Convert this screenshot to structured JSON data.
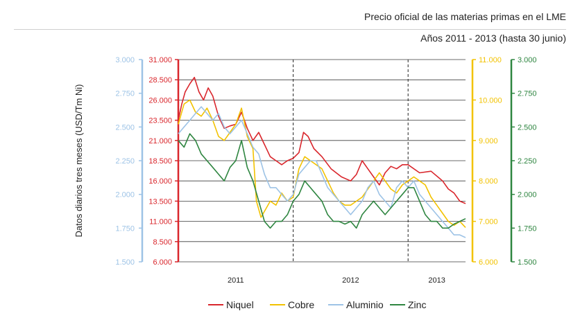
{
  "chart_data": {
    "type": "line",
    "title": "Precio oficial de las materias primas en el LME",
    "subtitle": "Años 2011 - 2013 (hasta 30 junio)",
    "ylabel": "Datos diarios tres meses (USD/Tm Ni)",
    "categories": [
      "2011",
      "2012",
      "2013"
    ],
    "x_range": [
      2011.0,
      2013.5
    ],
    "vertical_separators": [
      2012.0,
      2013.0
    ],
    "grid": true,
    "legend_position": "bottom",
    "axes": {
      "aluminio": {
        "range": [
          1500,
          3000
        ],
        "ticks": [
          "1.500",
          "1.750",
          "2.000",
          "2.250",
          "2.500",
          "2.750",
          "3.000"
        ],
        "color": "#9dc3e6"
      },
      "niquel": {
        "range": [
          6000,
          31000
        ],
        "ticks": [
          "6.000",
          "8.500",
          "11.000",
          "13.500",
          "16.000",
          "18.500",
          "21.000",
          "23.500",
          "26.000",
          "28.500",
          "31.000"
        ],
        "color": "#d9262c"
      },
      "cobre": {
        "range": [
          6000,
          11000
        ],
        "ticks": [
          "6.000",
          "7.000",
          "8.000",
          "9.000",
          "10.000",
          "11.000"
        ],
        "color": "#f2c200"
      },
      "zinc": {
        "range": [
          1500,
          3000
        ],
        "ticks": [
          "1.500",
          "1.750",
          "2.000",
          "2.250",
          "2.500",
          "2.750",
          "3.000"
        ],
        "color": "#2e8540"
      }
    },
    "series": [
      {
        "name": "Niquel",
        "color": "#d9262c",
        "axis": "niquel",
        "x": [
          2011.0,
          2011.03,
          2011.06,
          2011.1,
          2011.14,
          2011.18,
          2011.22,
          2011.26,
          2011.3,
          2011.35,
          2011.4,
          2011.45,
          2011.5,
          2011.55,
          2011.6,
          2011.65,
          2011.7,
          2011.75,
          2011.8,
          2011.85,
          2011.9,
          2011.95,
          2012.0,
          2012.05,
          2012.09,
          2012.13,
          2012.18,
          2012.25,
          2012.33,
          2012.42,
          2012.5,
          2012.55,
          2012.6,
          2012.65,
          2012.7,
          2012.75,
          2012.8,
          2012.85,
          2012.9,
          2012.95,
          2013.0,
          2013.1,
          2013.2,
          2013.3,
          2013.35,
          2013.4,
          2013.45,
          2013.5
        ],
        "y": [
          23500,
          25500,
          27000,
          28000,
          28800,
          27000,
          26000,
          27500,
          26500,
          24000,
          22500,
          22800,
          23000,
          24500,
          22500,
          21000,
          22000,
          20500,
          19000,
          18500,
          18000,
          18500,
          18800,
          19500,
          22000,
          21500,
          20000,
          19000,
          17500,
          16500,
          16000,
          16800,
          18500,
          17500,
          16500,
          15500,
          17000,
          17800,
          17500,
          18000,
          18000,
          17000,
          17200,
          16000,
          15000,
          14500,
          13500,
          13200
        ]
      },
      {
        "name": "Cobre",
        "color": "#f2c200",
        "axis": "cobre",
        "x": [
          2011.0,
          2011.05,
          2011.1,
          2011.15,
          2011.2,
          2011.25,
          2011.3,
          2011.35,
          2011.4,
          2011.45,
          2011.5,
          2011.55,
          2011.6,
          2011.65,
          2011.68,
          2011.72,
          2011.76,
          2011.8,
          2011.85,
          2011.9,
          2011.95,
          2012.0,
          2012.05,
          2012.1,
          2012.15,
          2012.2,
          2012.25,
          2012.3,
          2012.35,
          2012.4,
          2012.45,
          2012.5,
          2012.55,
          2012.6,
          2012.65,
          2012.7,
          2012.75,
          2012.8,
          2012.85,
          2012.9,
          2012.95,
          2013.0,
          2013.05,
          2013.1,
          2013.15,
          2013.2,
          2013.25,
          2013.3,
          2013.35,
          2013.4,
          2013.45,
          2013.5
        ],
        "y": [
          9400,
          9900,
          10000,
          9700,
          9600,
          9800,
          9500,
          9100,
          9000,
          9200,
          9400,
          9800,
          9100,
          8800,
          7500,
          7100,
          7300,
          7500,
          7400,
          7700,
          7500,
          7600,
          8300,
          8600,
          8500,
          8400,
          8300,
          8000,
          7700,
          7500,
          7400,
          7400,
          7500,
          7600,
          7800,
          8000,
          8200,
          8000,
          7800,
          7700,
          7900,
          8000,
          8100,
          8000,
          7900,
          7600,
          7400,
          7200,
          7000,
          6900,
          7000,
          6850
        ]
      },
      {
        "name": "Aluminio",
        "color": "#9dc3e6",
        "axis": "aluminio",
        "x": [
          2011.0,
          2011.05,
          2011.1,
          2011.15,
          2011.2,
          2011.25,
          2011.3,
          2011.35,
          2011.4,
          2011.45,
          2011.5,
          2011.55,
          2011.6,
          2011.65,
          2011.7,
          2011.75,
          2011.8,
          2011.85,
          2011.9,
          2011.95,
          2012.0,
          2012.05,
          2012.1,
          2012.15,
          2012.2,
          2012.25,
          2012.3,
          2012.35,
          2012.4,
          2012.45,
          2012.5,
          2012.55,
          2012.6,
          2012.65,
          2012.7,
          2012.75,
          2012.8,
          2012.85,
          2012.9,
          2012.95,
          2013.0,
          2013.05,
          2013.1,
          2013.15,
          2013.2,
          2013.25,
          2013.3,
          2013.35,
          2013.4,
          2013.45,
          2013.5
        ],
        "y": [
          2450,
          2500,
          2550,
          2600,
          2650,
          2600,
          2550,
          2600,
          2500,
          2450,
          2500,
          2550,
          2450,
          2350,
          2300,
          2150,
          2050,
          2050,
          2000,
          1950,
          2000,
          2150,
          2200,
          2250,
          2250,
          2150,
          2050,
          2000,
          1950,
          1900,
          1850,
          1900,
          1950,
          2050,
          2100,
          2000,
          1950,
          1900,
          2050,
          2100,
          2050,
          2100,
          2000,
          1950,
          1900,
          1850,
          1800,
          1750,
          1700,
          1700,
          1680
        ]
      },
      {
        "name": "Zinc",
        "color": "#2e8540",
        "axis": "zinc",
        "x": [
          2011.0,
          2011.05,
          2011.1,
          2011.15,
          2011.2,
          2011.25,
          2011.3,
          2011.35,
          2011.4,
          2011.45,
          2011.5,
          2011.55,
          2011.6,
          2011.65,
          2011.7,
          2011.75,
          2011.8,
          2011.85,
          2011.9,
          2011.95,
          2012.0,
          2012.05,
          2012.1,
          2012.15,
          2012.2,
          2012.25,
          2012.3,
          2012.35,
          2012.4,
          2012.45,
          2012.5,
          2012.55,
          2012.6,
          2012.65,
          2012.7,
          2012.75,
          2012.8,
          2012.85,
          2012.9,
          2012.95,
          2013.0,
          2013.05,
          2013.1,
          2013.15,
          2013.2,
          2013.25,
          2013.3,
          2013.35,
          2013.4,
          2013.45,
          2013.5
        ],
        "y": [
          2400,
          2350,
          2450,
          2400,
          2300,
          2250,
          2200,
          2150,
          2100,
          2200,
          2250,
          2400,
          2200,
          2100,
          1950,
          1800,
          1750,
          1800,
          1800,
          1850,
          1950,
          2000,
          2100,
          2050,
          2000,
          1950,
          1850,
          1800,
          1800,
          1780,
          1800,
          1750,
          1850,
          1900,
          1950,
          1900,
          1850,
          1900,
          1950,
          2000,
          2050,
          2050,
          1950,
          1850,
          1800,
          1800,
          1750,
          1750,
          1780,
          1800,
          1820
        ]
      }
    ]
  }
}
